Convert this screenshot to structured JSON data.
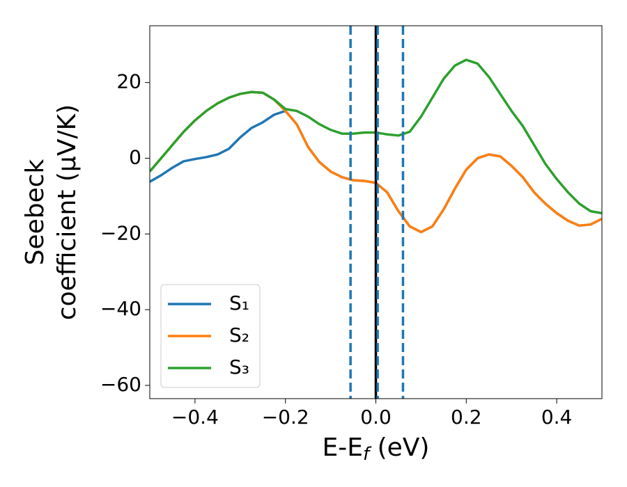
{
  "chart_data": {
    "type": "line",
    "xlabel": [
      "E-E",
      "f",
      " (eV)"
    ],
    "ylabel": [
      "Seebeck",
      "coefficient  (μV/K)"
    ],
    "x": [
      -0.5,
      -0.475,
      -0.45,
      -0.425,
      -0.4,
      -0.375,
      -0.35,
      -0.325,
      -0.3,
      -0.275,
      -0.25,
      -0.225,
      -0.2,
      -0.175,
      -0.15,
      -0.125,
      -0.1,
      -0.075,
      -0.05,
      -0.025,
      0,
      0.025,
      0.05,
      0.075,
      0.1,
      0.125,
      0.15,
      0.175,
      0.2,
      0.225,
      0.25,
      0.275,
      0.3,
      0.325,
      0.35,
      0.375,
      0.4,
      0.425,
      0.45,
      0.475,
      0.5
    ],
    "series": [
      {
        "name": "S₁",
        "color": "#1f77b4",
        "values": [
          -6.2,
          -4.5,
          -2.5,
          -0.8,
          -0.2,
          0.3,
          1.0,
          2.5,
          5.5,
          8.0,
          9.5,
          11.5,
          12.5,
          9,
          3,
          -1,
          -3.5,
          -5,
          -5.8,
          -6,
          -6.5,
          -9,
          -14,
          -18,
          -19.5,
          -18,
          -13.5,
          -8,
          -3,
          0,
          1,
          0.5,
          -2,
          -5,
          -9,
          -12,
          -14.5,
          -16.5,
          -17.8,
          -17.5,
          -16
        ]
      },
      {
        "name": "S₂",
        "color": "#ff7f0e",
        "values": [
          -3.5,
          0,
          3.5,
          7,
          10,
          12.5,
          14.5,
          16,
          17,
          17.5,
          17.3,
          15.5,
          12.5,
          9,
          3,
          -1,
          -3.5,
          -5,
          -5.8,
          -6,
          -6.5,
          -9,
          -14,
          -18,
          -19.5,
          -18,
          -13.5,
          -8,
          -3,
          0,
          1,
          0.5,
          -2,
          -5,
          -9,
          -12,
          -14.5,
          -16.5,
          -17.8,
          -17.5,
          -16
        ]
      },
      {
        "name": "S₃",
        "color": "#2ca02c",
        "values": [
          -3.5,
          0,
          3.5,
          7,
          10,
          12.5,
          14.5,
          16,
          17,
          17.5,
          17.3,
          15.5,
          13,
          12.5,
          11,
          9,
          7.5,
          6.5,
          6.5,
          6.8,
          6.8,
          6.3,
          6,
          7,
          11,
          16,
          21,
          24.5,
          26,
          25,
          21.5,
          17,
          12.5,
          8.5,
          3.5,
          -1.5,
          -5.5,
          -9,
          -12,
          -14,
          -14.5
        ]
      }
    ],
    "vlines": [
      {
        "x": -0.056,
        "color": "#1f77b4",
        "style": "dashed"
      },
      {
        "x": 0,
        "color": "#000000",
        "style": "solid"
      },
      {
        "x": 0.004,
        "color": "#1f77b4",
        "style": "dashed"
      },
      {
        "x": 0.06,
        "color": "#1f77b4",
        "style": "dashed"
      }
    ],
    "xlim": [
      -0.5,
      0.5
    ],
    "xticks": [
      {
        "value": -0.4,
        "label": "−0.4"
      },
      {
        "value": -0.2,
        "label": "−0.2"
      },
      {
        "value": 0,
        "label": "0.0"
      },
      0.2,
      0.4
    ],
    "ylim": [
      -63.5,
      35
    ],
    "yticks": [
      {
        "value": -60,
        "label": "−60"
      },
      {
        "value": -40,
        "label": "−40"
      },
      {
        "value": -20,
        "label": "−20"
      },
      0,
      20
    ],
    "legend": "lower left",
    "grid": false
  }
}
